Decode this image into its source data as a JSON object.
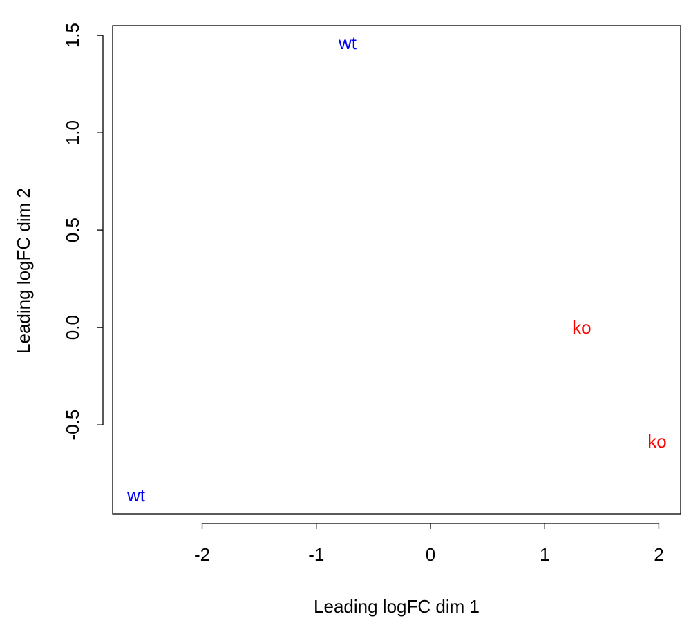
{
  "chart_data": {
    "type": "scatter",
    "xlabel": "Leading logFC dim 1",
    "ylabel": "Leading logFC dim 2",
    "x": [
      -0.726,
      1.325,
      1.985,
      -2.578
    ],
    "y": [
      1.454,
      -0.007,
      -0.592,
      -0.869
    ],
    "labels": [
      "wt",
      "ko",
      "ko",
      "wt"
    ],
    "colors": [
      "#0000ff",
      "#ff0000",
      "#ff0000",
      "#0000ff"
    ],
    "xlim": [
      -2.784,
      2.191
    ],
    "ylim": [
      -0.957,
      1.55
    ],
    "xticks": [
      -2,
      -1,
      0,
      1,
      2
    ],
    "yticks": [
      {
        "value": -0.5,
        "label": "-0.5"
      },
      {
        "value": 0,
        "label": "0.0"
      },
      {
        "value": 0.5,
        "label": "0.5"
      },
      {
        "value": 1,
        "label": "1.0"
      },
      1.5
    ]
  }
}
